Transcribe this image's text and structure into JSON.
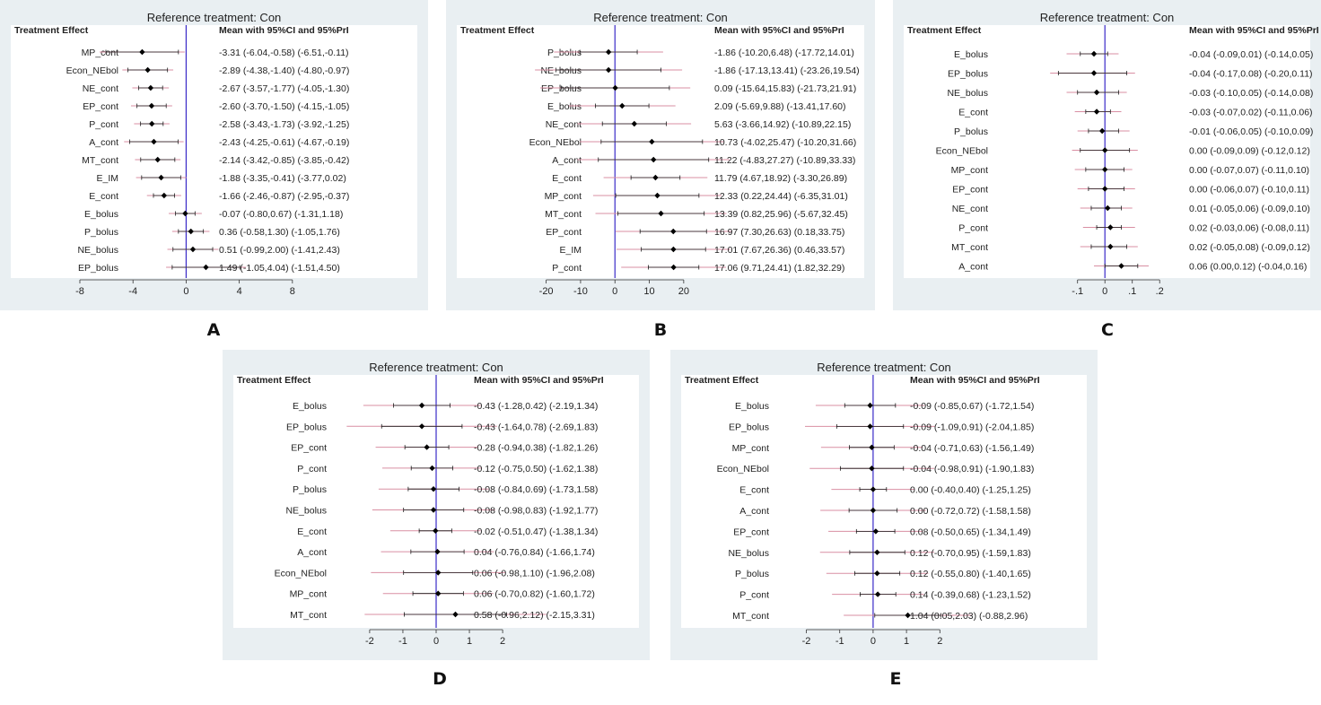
{
  "chart_data": [
    {
      "id": "A",
      "type": "forest",
      "title": "Reference treatment: Con",
      "left_header": "Treatment Effect",
      "right_header": "Mean with 95%CI and 95%PrI",
      "xticks": [
        -8,
        -4,
        0,
        4,
        8
      ],
      "xlim": [
        -13.2,
        17.4
      ],
      "rows": [
        {
          "label": "MP_cont",
          "mean": -3.31,
          "ci": [
            -6.04,
            -0.58
          ],
          "pi": [
            -6.51,
            -0.11
          ],
          "text": "-3.31 (-6.04,-0.58)  (-6.51,-0.11)"
        },
        {
          "label": "Econ_NEbol",
          "mean": -2.89,
          "ci": [
            -4.38,
            -1.4
          ],
          "pi": [
            -4.8,
            -0.97
          ],
          "text": "-2.89 (-4.38,-1.40)  (-4.80,-0.97)"
        },
        {
          "label": "NE_cont",
          "mean": -2.67,
          "ci": [
            -3.57,
            -1.77
          ],
          "pi": [
            -4.05,
            -1.3
          ],
          "text": "-2.67 (-3.57,-1.77)  (-4.05,-1.30)"
        },
        {
          "label": "EP_cont",
          "mean": -2.6,
          "ci": [
            -3.7,
            -1.5
          ],
          "pi": [
            -4.15,
            -1.05
          ],
          "text": "-2.60 (-3.70,-1.50)  (-4.15,-1.05)"
        },
        {
          "label": "P_cont",
          "mean": -2.58,
          "ci": [
            -3.43,
            -1.73
          ],
          "pi": [
            -3.92,
            -1.25
          ],
          "text": "-2.58 (-3.43,-1.73)  (-3.92,-1.25)"
        },
        {
          "label": "A_cont",
          "mean": -2.43,
          "ci": [
            -4.25,
            -0.61
          ],
          "pi": [
            -4.67,
            -0.19
          ],
          "text": "-2.43 (-4.25,-0.61)  (-4.67,-0.19)"
        },
        {
          "label": "MT_cont",
          "mean": -2.14,
          "ci": [
            -3.42,
            -0.85
          ],
          "pi": [
            -3.85,
            -0.42
          ],
          "text": "-2.14 (-3.42,-0.85)  (-3.85,-0.42)"
        },
        {
          "label": "E_IM",
          "mean": -1.88,
          "ci": [
            -3.35,
            -0.41
          ],
          "pi": [
            -3.77,
            0.02
          ],
          "text": "-1.88 (-3.35,-0.41)  (-3.77,0.02)"
        },
        {
          "label": "E_cont",
          "mean": -1.66,
          "ci": [
            -2.46,
            -0.87
          ],
          "pi": [
            -2.95,
            -0.37
          ],
          "text": "-1.66 (-2.46,-0.87)  (-2.95,-0.37)"
        },
        {
          "label": "E_bolus",
          "mean": -0.07,
          "ci": [
            -0.8,
            0.67
          ],
          "pi": [
            -1.31,
            1.18
          ],
          "text": "-0.07 (-0.80,0.67)  (-1.31,1.18)"
        },
        {
          "label": "P_bolus",
          "mean": 0.36,
          "ci": [
            -0.58,
            1.3
          ],
          "pi": [
            -1.05,
            1.76
          ],
          "text": "0.36 (-0.58,1.30)  (-1.05,1.76)"
        },
        {
          "label": "NE_bolus",
          "mean": 0.51,
          "ci": [
            -0.99,
            2.0
          ],
          "pi": [
            -1.41,
            2.43
          ],
          "text": "0.51 (-0.99,2.00)  (-1.41,2.43)"
        },
        {
          "label": "EP_bolus",
          "mean": 1.49,
          "ci": [
            -1.05,
            4.04
          ],
          "pi": [
            -1.51,
            4.5
          ],
          "text": "1.49 (-1.05,4.04)  (-1.51,4.50)"
        }
      ]
    },
    {
      "id": "B",
      "type": "forest",
      "title": "Reference treatment: Con",
      "left_header": "Treatment Effect",
      "right_header": "Mean with 95%CI and 95%PrI",
      "xticks": [
        -20,
        -10,
        0,
        10,
        20
      ],
      "xlim": [
        -46.0,
        72.5
      ],
      "rows": [
        {
          "label": "P_bolus",
          "mean": -1.86,
          "ci": [
            -10.2,
            6.48
          ],
          "pi": [
            -17.72,
            14.01
          ],
          "text": "-1.86 (-10.20,6.48)  (-17.72,14.01)"
        },
        {
          "label": "NE_bolus",
          "mean": -1.86,
          "ci": [
            -17.13,
            13.41
          ],
          "pi": [
            -23.26,
            19.54
          ],
          "text": "-1.86 (-17.13,13.41)  (-23.26,19.54)"
        },
        {
          "label": "EP_bolus",
          "mean": 0.09,
          "ci": [
            -15.64,
            15.83
          ],
          "pi": [
            -21.73,
            21.91
          ],
          "text": "0.09 (-15.64,15.83)  (-21.73,21.91)"
        },
        {
          "label": "E_bolus",
          "mean": 2.09,
          "ci": [
            -5.69,
            9.88
          ],
          "pi": [
            -13.41,
            17.6
          ],
          "text": "2.09 (-5.69,9.88)  (-13.41,17.60)"
        },
        {
          "label": "NE_cont",
          "mean": 5.63,
          "ci": [
            -3.66,
            14.92
          ],
          "pi": [
            -10.89,
            22.15
          ],
          "text": "5.63 (-3.66,14.92)  (-10.89,22.15)"
        },
        {
          "label": "Econ_NEbol",
          "mean": 10.73,
          "ci": [
            -4.02,
            25.47
          ],
          "pi": [
            -10.2,
            31.66
          ],
          "text": "10.73 (-4.02,25.47)  (-10.20,31.66)"
        },
        {
          "label": "A_cont",
          "mean": 11.22,
          "ci": [
            -4.83,
            27.27
          ],
          "pi": [
            -10.89,
            33.33
          ],
          "text": "11.22 (-4.83,27.27)  (-10.89,33.33)"
        },
        {
          "label": "E_cont",
          "mean": 11.79,
          "ci": [
            4.67,
            18.92
          ],
          "pi": [
            -3.3,
            26.89
          ],
          "text": "11.79 (4.67,18.92)  (-3.30,26.89)"
        },
        {
          "label": "MP_cont",
          "mean": 12.33,
          "ci": [
            0.22,
            24.44
          ],
          "pi": [
            -6.35,
            31.01
          ],
          "text": "12.33 (0.22,24.44)  (-6.35,31.01)"
        },
        {
          "label": "MT_cont",
          "mean": 13.39,
          "ci": [
            0.82,
            25.96
          ],
          "pi": [
            -5.67,
            32.45
          ],
          "text": "13.39 (0.82,25.96)  (-5.67,32.45)"
        },
        {
          "label": "EP_cont",
          "mean": 16.97,
          "ci": [
            7.3,
            26.63
          ],
          "pi": [
            0.18,
            33.75
          ],
          "text": "16.97 (7.30,26.63)  (0.18,33.75)"
        },
        {
          "label": "E_IM",
          "mean": 17.01,
          "ci": [
            7.67,
            26.36
          ],
          "pi": [
            0.46,
            33.57
          ],
          "text": "17.01 (7.67,26.36)  (0.46,33.57)"
        },
        {
          "label": "P_cont",
          "mean": 17.06,
          "ci": [
            9.71,
            24.41
          ],
          "pi": [
            1.82,
            32.29
          ],
          "text": "17.06 (9.71,24.41)  (1.82,32.29)"
        }
      ]
    },
    {
      "id": "C",
      "type": "forest",
      "title": "Reference treatment: Con",
      "left_header": "Treatment Effect",
      "right_header": "Mean with 95%CI and 95%PrI",
      "xticks": [
        -0.1,
        0,
        0.1,
        0.2
      ],
      "xtick_labels": [
        "-.1",
        "0",
        ".1",
        ".2"
      ],
      "xlim": [
        -0.735,
        0.75
      ],
      "rows": [
        {
          "label": "E_bolus",
          "mean": -0.04,
          "ci": [
            -0.09,
            0.01
          ],
          "pi": [
            -0.14,
            0.05
          ],
          "text": "-0.04 (-0.09,0.01)  (-0.14,0.05)"
        },
        {
          "label": "EP_bolus",
          "mean": -0.04,
          "ci": [
            -0.17,
            0.08
          ],
          "pi": [
            -0.2,
            0.11
          ],
          "text": "-0.04 (-0.17,0.08)  (-0.20,0.11)"
        },
        {
          "label": "NE_bolus",
          "mean": -0.03,
          "ci": [
            -0.1,
            0.05
          ],
          "pi": [
            -0.14,
            0.08
          ],
          "text": "-0.03 (-0.10,0.05)  (-0.14,0.08)"
        },
        {
          "label": "E_cont",
          "mean": -0.03,
          "ci": [
            -0.07,
            0.02
          ],
          "pi": [
            -0.11,
            0.06
          ],
          "text": "-0.03 (-0.07,0.02)  (-0.11,0.06)"
        },
        {
          "label": "P_bolus",
          "mean": -0.01,
          "ci": [
            -0.06,
            0.05
          ],
          "pi": [
            -0.1,
            0.09
          ],
          "text": "-0.01 (-0.06,0.05)  (-0.10,0.09)"
        },
        {
          "label": "Econ_NEbol",
          "mean": 0.0,
          "ci": [
            -0.09,
            0.09
          ],
          "pi": [
            -0.12,
            0.12
          ],
          "text": "0.00 (-0.09,0.09)  (-0.12,0.12)"
        },
        {
          "label": "MP_cont",
          "mean": 0.0,
          "ci": [
            -0.07,
            0.07
          ],
          "pi": [
            -0.11,
            0.1
          ],
          "text": "0.00 (-0.07,0.07)  (-0.11,0.10)"
        },
        {
          "label": "EP_cont",
          "mean": 0.0,
          "ci": [
            -0.06,
            0.07
          ],
          "pi": [
            -0.1,
            0.11
          ],
          "text": "0.00 (-0.06,0.07)  (-0.10,0.11)"
        },
        {
          "label": "NE_cont",
          "mean": 0.01,
          "ci": [
            -0.05,
            0.06
          ],
          "pi": [
            -0.09,
            0.1
          ],
          "text": "0.01 (-0.05,0.06)  (-0.09,0.10)"
        },
        {
          "label": "P_cont",
          "mean": 0.02,
          "ci": [
            -0.03,
            0.06
          ],
          "pi": [
            -0.08,
            0.11
          ],
          "text": "0.02 (-0.03,0.06)  (-0.08,0.11)"
        },
        {
          "label": "MT_cont",
          "mean": 0.02,
          "ci": [
            -0.05,
            0.08
          ],
          "pi": [
            -0.09,
            0.12
          ],
          "text": "0.02 (-0.05,0.08)  (-0.09,0.12)"
        },
        {
          "label": "A_cont",
          "mean": 0.06,
          "ci": [
            0.0,
            0.12
          ],
          "pi": [
            -0.04,
            0.16
          ],
          "text": "0.06 (0.00,0.12)  (-0.04,0.16)"
        }
      ]
    },
    {
      "id": "D",
      "type": "forest",
      "title": "Reference treatment: Con",
      "left_header": "Treatment Effect",
      "right_header": "Mean with 95%CI and 95%PrI",
      "xticks": [
        -2,
        -1,
        0,
        1,
        2
      ],
      "xlim": [
        -6.1,
        6.1
      ],
      "rows": [
        {
          "label": "E_bolus",
          "mean": -0.43,
          "ci": [
            -1.28,
            0.42
          ],
          "pi": [
            -2.19,
            1.34
          ],
          "text": "-0.43 (-1.28,0.42)  (-2.19,1.34)"
        },
        {
          "label": "EP_bolus",
          "mean": -0.43,
          "ci": [
            -1.64,
            0.78
          ],
          "pi": [
            -2.69,
            1.83
          ],
          "text": "-0.43 (-1.64,0.78)  (-2.69,1.83)"
        },
        {
          "label": "EP_cont",
          "mean": -0.28,
          "ci": [
            -0.94,
            0.38
          ],
          "pi": [
            -1.82,
            1.26
          ],
          "text": "-0.28 (-0.94,0.38)  (-1.82,1.26)"
        },
        {
          "label": "P_cont",
          "mean": -0.12,
          "ci": [
            -0.75,
            0.5
          ],
          "pi": [
            -1.62,
            1.38
          ],
          "text": "-0.12 (-0.75,0.50)  (-1.62,1.38)"
        },
        {
          "label": "P_bolus",
          "mean": -0.08,
          "ci": [
            -0.84,
            0.69
          ],
          "pi": [
            -1.73,
            1.58
          ],
          "text": "-0.08 (-0.84,0.69)  (-1.73,1.58)"
        },
        {
          "label": "NE_bolus",
          "mean": -0.08,
          "ci": [
            -0.98,
            0.83
          ],
          "pi": [
            -1.92,
            1.77
          ],
          "text": "-0.08 (-0.98,0.83)  (-1.92,1.77)"
        },
        {
          "label": "E_cont",
          "mean": -0.02,
          "ci": [
            -0.51,
            0.47
          ],
          "pi": [
            -1.38,
            1.34
          ],
          "text": "-0.02 (-0.51,0.47)  (-1.38,1.34)"
        },
        {
          "label": "A_cont",
          "mean": 0.04,
          "ci": [
            -0.76,
            0.84
          ],
          "pi": [
            -1.66,
            1.74
          ],
          "text": "0.04 (-0.76,0.84)  (-1.66,1.74)"
        },
        {
          "label": "Econ_NEbol",
          "mean": 0.06,
          "ci": [
            -0.98,
            1.1
          ],
          "pi": [
            -1.96,
            2.08
          ],
          "text": "0.06 (-0.98,1.10)  (-1.96,2.08)"
        },
        {
          "label": "MP_cont",
          "mean": 0.06,
          "ci": [
            -0.7,
            0.82
          ],
          "pi": [
            -1.6,
            1.72
          ],
          "text": "0.06 (-0.70,0.82)  (-1.60,1.72)"
        },
        {
          "label": "MT_cont",
          "mean": 0.58,
          "ci": [
            -0.96,
            2.12
          ],
          "pi": [
            -2.15,
            3.31
          ],
          "text": "0.58 (-0.96,2.12)  (-2.15,3.31)"
        }
      ]
    },
    {
      "id": "E",
      "type": "forest",
      "title": "Reference treatment: Con",
      "left_header": "Treatment Effect",
      "right_header": "Mean with 95%CI and 95%PrI",
      "xticks": [
        -2,
        -1,
        0,
        1,
        2
      ],
      "xlim": [
        -5.75,
        6.4
      ],
      "rows": [
        {
          "label": "E_bolus",
          "mean": -0.09,
          "ci": [
            -0.85,
            0.67
          ],
          "pi": [
            -1.72,
            1.54
          ],
          "text": "-0.09 (-0.85,0.67)  (-1.72,1.54)"
        },
        {
          "label": "EP_bolus",
          "mean": -0.09,
          "ci": [
            -1.09,
            0.91
          ],
          "pi": [
            -2.04,
            1.85
          ],
          "text": "-0.09 (-1.09,0.91)  (-2.04,1.85)"
        },
        {
          "label": "MP_cont",
          "mean": -0.04,
          "ci": [
            -0.71,
            0.63
          ],
          "pi": [
            -1.56,
            1.49
          ],
          "text": "-0.04 (-0.71,0.63)  (-1.56,1.49)"
        },
        {
          "label": "Econ_NEbol",
          "mean": -0.04,
          "ci": [
            -0.98,
            0.91
          ],
          "pi": [
            -1.9,
            1.83
          ],
          "text": "-0.04 (-0.98,0.91)  (-1.90,1.83)"
        },
        {
          "label": "E_cont",
          "mean": 0.0,
          "ci": [
            -0.4,
            0.4
          ],
          "pi": [
            -1.25,
            1.25
          ],
          "text": "0.00 (-0.40,0.40)  (-1.25,1.25)"
        },
        {
          "label": "A_cont",
          "mean": 0.0,
          "ci": [
            -0.72,
            0.72
          ],
          "pi": [
            -1.58,
            1.58
          ],
          "text": "0.00 (-0.72,0.72)  (-1.58,1.58)"
        },
        {
          "label": "EP_cont",
          "mean": 0.08,
          "ci": [
            -0.5,
            0.65
          ],
          "pi": [
            -1.34,
            1.49
          ],
          "text": "0.08 (-0.50,0.65)  (-1.34,1.49)"
        },
        {
          "label": "NE_bolus",
          "mean": 0.12,
          "ci": [
            -0.7,
            0.95
          ],
          "pi": [
            -1.59,
            1.83
          ],
          "text": "0.12 (-0.70,0.95)  (-1.59,1.83)"
        },
        {
          "label": "P_bolus",
          "mean": 0.12,
          "ci": [
            -0.55,
            0.8
          ],
          "pi": [
            -1.4,
            1.65
          ],
          "text": "0.12 (-0.55,0.80)  (-1.40,1.65)"
        },
        {
          "label": "P_cont",
          "mean": 0.14,
          "ci": [
            -0.39,
            0.68
          ],
          "pi": [
            -1.23,
            1.52
          ],
          "text": "0.14 (-0.39,0.68)  (-1.23,1.52)"
        },
        {
          "label": "MT_cont",
          "mean": 1.04,
          "ci": [
            0.05,
            2.03
          ],
          "pi": [
            -0.88,
            2.96
          ],
          "text": "1.04 (0.05,2.03)  (-0.88,2.96)"
        }
      ]
    }
  ],
  "panel_letters": [
    "A",
    "B",
    "C",
    "D",
    "E"
  ],
  "colors": {
    "panel_bg": "#e9eff2",
    "plot_bg": "#ffffff",
    "ref_line": "#3a2bc8",
    "ci_line": "#1a1a1a",
    "pi_line": "#d98fa3",
    "marker": "#000000",
    "axis": "#333333"
  }
}
